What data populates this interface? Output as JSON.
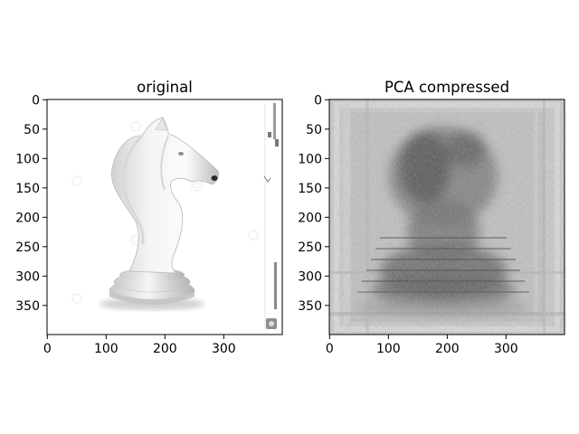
{
  "chart_data": [
    {
      "type": "image",
      "title": "original",
      "xlabel": "",
      "ylabel": "",
      "xlim": [
        0,
        399
      ],
      "ylim": [
        399,
        0
      ],
      "xticks": [
        0,
        100,
        200,
        300
      ],
      "yticks": [
        0,
        50,
        100,
        150,
        200,
        250,
        300,
        350
      ],
      "colormap": "gray",
      "content": "white chess knight piece on white background"
    },
    {
      "type": "image",
      "title": "PCA compressed",
      "xlabel": "",
      "ylabel": "",
      "xlim": [
        0,
        399
      ],
      "ylim": [
        399,
        0
      ],
      "xticks": [
        0,
        100,
        200,
        300
      ],
      "yticks": [
        0,
        50,
        100,
        150,
        200,
        250,
        300,
        350
      ],
      "colormap": "gray",
      "content": "blurred grayscale reconstruction of the chess knight"
    }
  ]
}
